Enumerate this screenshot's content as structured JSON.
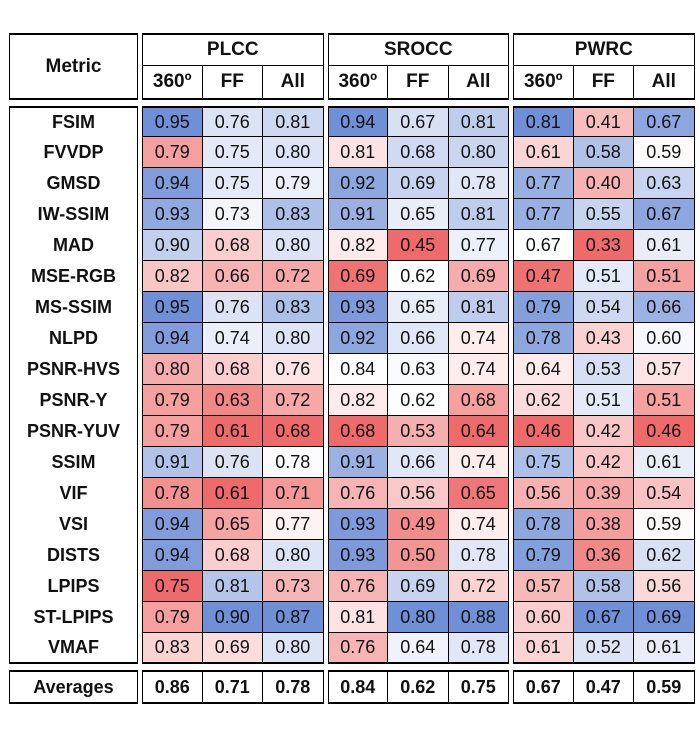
{
  "header": {
    "metric_label": "Metric",
    "groups": [
      "PLCC",
      "SROCC",
      "PWRC"
    ],
    "subs": [
      "360º",
      "FF",
      "All"
    ]
  },
  "rows": [
    {
      "name": "FSIM",
      "values": [
        "0.95",
        "0.76",
        "0.81",
        "0.94",
        "0.67",
        "0.81",
        "0.81",
        "0.41",
        "0.67"
      ]
    },
    {
      "name": "FVVDP",
      "values": [
        "0.79",
        "0.75",
        "0.80",
        "0.81",
        "0.68",
        "0.80",
        "0.61",
        "0.58",
        "0.59"
      ]
    },
    {
      "name": "GMSD",
      "values": [
        "0.94",
        "0.75",
        "0.79",
        "0.92",
        "0.69",
        "0.78",
        "0.77",
        "0.40",
        "0.63"
      ]
    },
    {
      "name": "IW-SSIM",
      "values": [
        "0.93",
        "0.73",
        "0.83",
        "0.91",
        "0.65",
        "0.81",
        "0.77",
        "0.55",
        "0.67"
      ]
    },
    {
      "name": "MAD",
      "values": [
        "0.90",
        "0.68",
        "0.80",
        "0.82",
        "0.45",
        "0.77",
        "0.67",
        "0.33",
        "0.61"
      ]
    },
    {
      "name": "MSE-RGB",
      "values": [
        "0.82",
        "0.66",
        "0.72",
        "0.69",
        "0.62",
        "0.69",
        "0.47",
        "0.51",
        "0.51"
      ]
    },
    {
      "name": "MS-SSIM",
      "values": [
        "0.95",
        "0.76",
        "0.83",
        "0.93",
        "0.65",
        "0.81",
        "0.79",
        "0.54",
        "0.66"
      ]
    },
    {
      "name": "NLPD",
      "values": [
        "0.94",
        "0.74",
        "0.80",
        "0.92",
        "0.66",
        "0.74",
        "0.78",
        "0.43",
        "0.60"
      ]
    },
    {
      "name": "PSNR-HVS",
      "values": [
        "0.80",
        "0.68",
        "0.76",
        "0.84",
        "0.63",
        "0.74",
        "0.64",
        "0.53",
        "0.57"
      ]
    },
    {
      "name": "PSNR-Y",
      "values": [
        "0.79",
        "0.63",
        "0.72",
        "0.82",
        "0.62",
        "0.68",
        "0.62",
        "0.51",
        "0.51"
      ]
    },
    {
      "name": "PSNR-YUV",
      "values": [
        "0.79",
        "0.61",
        "0.68",
        "0.68",
        "0.53",
        "0.64",
        "0.46",
        "0.42",
        "0.46"
      ]
    },
    {
      "name": "SSIM",
      "values": [
        "0.91",
        "0.76",
        "0.78",
        "0.91",
        "0.66",
        "0.74",
        "0.75",
        "0.42",
        "0.61"
      ]
    },
    {
      "name": "VIF",
      "values": [
        "0.78",
        "0.61",
        "0.71",
        "0.76",
        "0.56",
        "0.65",
        "0.56",
        "0.39",
        "0.54"
      ]
    },
    {
      "name": "VSI",
      "values": [
        "0.94",
        "0.65",
        "0.77",
        "0.93",
        "0.49",
        "0.74",
        "0.78",
        "0.38",
        "0.59"
      ]
    },
    {
      "name": "DISTS",
      "values": [
        "0.94",
        "0.68",
        "0.80",
        "0.93",
        "0.50",
        "0.78",
        "0.79",
        "0.36",
        "0.62"
      ]
    },
    {
      "name": "LPIPS",
      "values": [
        "0.75",
        "0.81",
        "0.73",
        "0.76",
        "0.69",
        "0.72",
        "0.57",
        "0.58",
        "0.56"
      ]
    },
    {
      "name": "ST-LPIPS",
      "values": [
        "0.79",
        "0.90",
        "0.87",
        "0.81",
        "0.80",
        "0.88",
        "0.60",
        "0.67",
        "0.69"
      ]
    },
    {
      "name": "VMAF",
      "values": [
        "0.83",
        "0.69",
        "0.80",
        "0.76",
        "0.64",
        "0.78",
        "0.61",
        "0.52",
        "0.61"
      ]
    }
  ],
  "averages": {
    "name": "Averages",
    "values": [
      "0.86",
      "0.71",
      "0.78",
      "0.84",
      "0.62",
      "0.75",
      "0.67",
      "0.47",
      "0.59"
    ]
  },
  "colors": {
    "high": "#6f8fd6",
    "low": "#ef6a6a",
    "mid": "#ffffff"
  }
}
